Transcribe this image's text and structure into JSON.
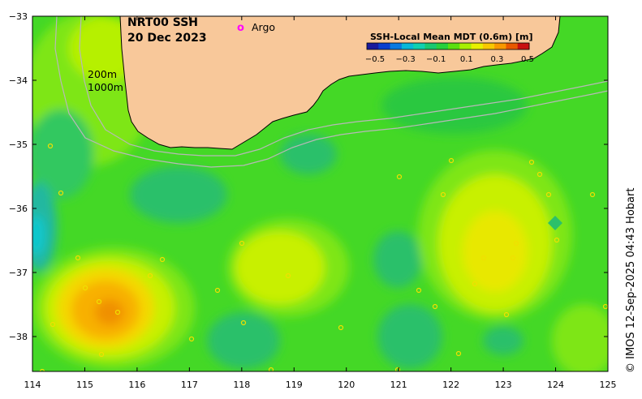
{
  "map": {
    "title_line1": "NRT00 SSH",
    "title_line2": "20 Dec 2023",
    "legend_argo_symbol": "o",
    "legend_argo_label": "Argo",
    "contour_label_1": "200m",
    "contour_label_2": "1000m",
    "credit": "© IMOS 12-Sep-2025 04:43 Hobart",
    "x_ticks": [
      "114",
      "115",
      "116",
      "117",
      "118",
      "119",
      "120",
      "121",
      "122",
      "123",
      "124",
      "125"
    ],
    "y_ticks": [
      "−33",
      "−34",
      "−35",
      "−36",
      "−37",
      "−38"
    ]
  },
  "colorbar": {
    "title": "SSH-Local Mean MDT (0.6m) [m]",
    "labels": [
      "−0.5",
      "−0.3",
      "−0.1",
      "0.1",
      "0.3",
      "0.5"
    ],
    "colors": [
      "#1a1a9c",
      "#0a3ecf",
      "#0a7ae0",
      "#08b8d8",
      "#10d0b0",
      "#18c870",
      "#28d03c",
      "#5ce010",
      "#a8f000",
      "#e8f000",
      "#f8c800",
      "#f89800",
      "#e85800",
      "#c81010"
    ]
  },
  "colors": {
    "land": "#f8c89a",
    "ocean_base": "#44d826",
    "argo": "#ff00ff"
  }
}
